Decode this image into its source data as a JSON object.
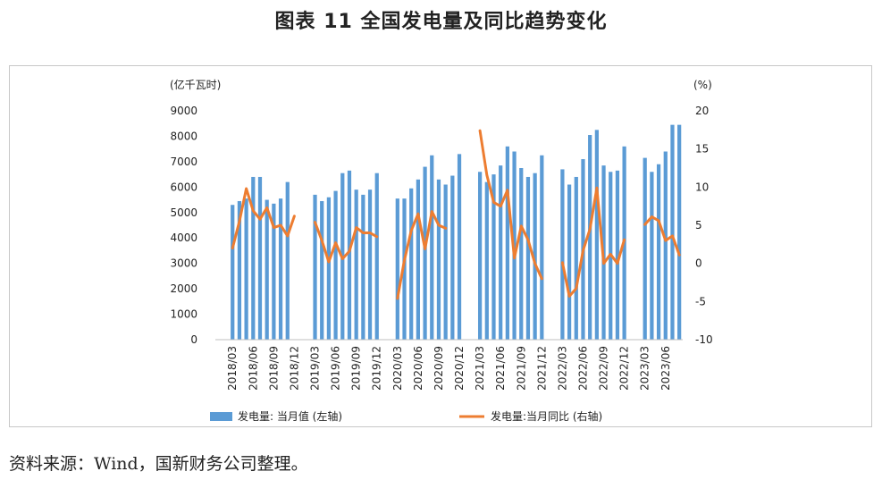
{
  "title": "图表 11  全国发电量及同比趋势变化",
  "source": "资料来源：Wind，国新财务公司整理。",
  "chart_data": {
    "type": "bar+line",
    "left_unit": "(亿千瓦时)",
    "right_unit": "(%)",
    "left_ylim": [
      0,
      9000
    ],
    "left_ticks": [
      0,
      1000,
      2000,
      3000,
      4000,
      5000,
      6000,
      7000,
      8000,
      9000
    ],
    "right_ylim": [
      -10,
      20
    ],
    "right_ticks": [
      -10,
      -5,
      0,
      5,
      10,
      15,
      20
    ],
    "x_tick_labels": [
      "2018/03",
      "2018/06",
      "2018/09",
      "2018/12",
      "2019/03",
      "2019/06",
      "2019/09",
      "2019/12",
      "2020/03",
      "2020/06",
      "2020/09",
      "2020/12",
      "2021/03",
      "2021/06",
      "2021/09",
      "2021/12",
      "2022/03",
      "2022/06",
      "2022/09",
      "2022/12",
      "2023/03",
      "2023/06"
    ],
    "grid": false,
    "legend_position": "bottom",
    "months": [
      "2018/01",
      "2018/02",
      "2018/03",
      "2018/04",
      "2018/05",
      "2018/06",
      "2018/07",
      "2018/08",
      "2018/09",
      "2018/10",
      "2018/11",
      "2018/12",
      "2019/01",
      "2019/02",
      "2019/03",
      "2019/04",
      "2019/05",
      "2019/06",
      "2019/07",
      "2019/08",
      "2019/09",
      "2019/10",
      "2019/11",
      "2019/12",
      "2020/01",
      "2020/02",
      "2020/03",
      "2020/04",
      "2020/05",
      "2020/06",
      "2020/07",
      "2020/08",
      "2020/09",
      "2020/10",
      "2020/11",
      "2020/12",
      "2021/01",
      "2021/02",
      "2021/03",
      "2021/04",
      "2021/05",
      "2021/06",
      "2021/07",
      "2021/08",
      "2021/09",
      "2021/10",
      "2021/11",
      "2021/12",
      "2022/01",
      "2022/02",
      "2022/03",
      "2022/04",
      "2022/05",
      "2022/06",
      "2022/07",
      "2022/08",
      "2022/09",
      "2022/10",
      "2022/11",
      "2022/12",
      "2023/01",
      "2023/02",
      "2023/03",
      "2023/04",
      "2023/05",
      "2023/06",
      "2023/07",
      "2023/08"
    ],
    "series": [
      {
        "name": "发电量: 当月值 (左轴)",
        "type": "bar",
        "axis": "left",
        "color": "#5b9bd5",
        "values": [
          null,
          null,
          5300,
          5450,
          5550,
          6400,
          6400,
          5500,
          5350,
          5550,
          6200,
          null,
          null,
          null,
          5700,
          5450,
          5600,
          5850,
          6550,
          6650,
          5900,
          5700,
          5900,
          6550,
          null,
          null,
          5550,
          5550,
          5950,
          6300,
          6800,
          7250,
          6300,
          6100,
          6450,
          7300,
          null,
          null,
          6600,
          6200,
          6500,
          6850,
          7600,
          7400,
          6750,
          6400,
          6550,
          7250,
          null,
          null,
          6700,
          6100,
          6400,
          7100,
          8050,
          8250,
          6850,
          6600,
          6650,
          7600,
          null,
          null,
          7150,
          6600,
          6900,
          7400,
          8450,
          8450
        ]
      },
      {
        "name": "发电量:当月同比 (右轴)",
        "type": "line",
        "axis": "right",
        "color": "#ed7d31",
        "values": [
          null,
          null,
          2.0,
          5.5,
          9.8,
          6.9,
          5.8,
          7.3,
          4.7,
          5.0,
          3.6,
          6.2,
          null,
          null,
          5.4,
          3.0,
          0.2,
          2.7,
          0.6,
          1.6,
          4.7,
          4.0,
          4.0,
          3.5,
          null,
          null,
          -4.6,
          0.4,
          4.3,
          6.5,
          1.9,
          6.8,
          5.0,
          4.6,
          null,
          null,
          null,
          null,
          17.4,
          11.6,
          8.0,
          7.5,
          9.6,
          0.7,
          4.9,
          3.1,
          0.0,
          -2.0,
          null,
          null,
          0.1,
          -4.3,
          -3.3,
          1.7,
          4.5,
          9.9,
          0.0,
          1.2,
          0.0,
          3.1,
          null,
          null,
          5.1,
          6.1,
          5.6,
          3.0,
          3.6,
          1.1
        ]
      }
    ]
  }
}
